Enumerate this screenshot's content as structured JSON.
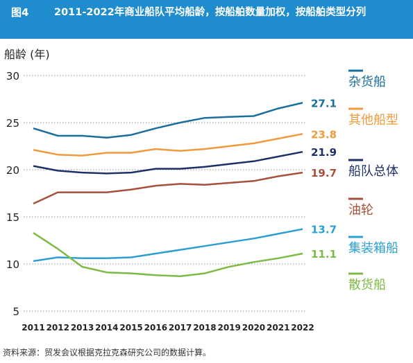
{
  "figure": {
    "number": "图4",
    "title": "2011-2022年商业船队平均船龄，按船舶数量加权，按船舶类型分列"
  },
  "source_note": "资料来源：贸发会议根据克拉克森研究公司的数据计算。",
  "colors": {
    "header": "#1f8ccd",
    "杂货船": "#1a6e9c",
    "其他船型": "#ef9a3b",
    "船队总体": "#1e3166",
    "油轮": "#a6503a",
    "集装箱船": "#2b9fd1",
    "散货船": "#7dba45"
  },
  "chart_data": {
    "type": "line",
    "ylabel": "船龄 (年)",
    "ylim": [
      5,
      30
    ],
    "yticks": [
      5,
      10,
      15,
      20,
      25,
      30
    ],
    "grid": "horizontal dotted",
    "legend": "right",
    "x": [
      "2011",
      "2012",
      "2013",
      "2014",
      "2015",
      "2016",
      "2017",
      "2018",
      "2019",
      "2020",
      "2021",
      "2022"
    ],
    "series": [
      {
        "name": "杂货船",
        "end_label": "27.1",
        "values": [
          24.4,
          23.6,
          23.6,
          23.4,
          23.7,
          24.4,
          25.0,
          25.5,
          25.6,
          25.7,
          26.5,
          27.1
        ]
      },
      {
        "name": "其他船型",
        "end_label": "23.8",
        "values": [
          22.1,
          21.6,
          21.5,
          21.8,
          21.8,
          22.2,
          22.0,
          22.2,
          22.5,
          22.8,
          23.3,
          23.8
        ]
      },
      {
        "name": "船队总体",
        "end_label": "21.9",
        "values": [
          20.4,
          19.9,
          19.7,
          19.6,
          19.7,
          20.1,
          20.1,
          20.3,
          20.6,
          20.9,
          21.4,
          21.9
        ]
      },
      {
        "name": "油轮",
        "end_label": "19.7",
        "values": [
          16.4,
          17.6,
          17.6,
          17.6,
          17.9,
          18.3,
          18.5,
          18.4,
          18.6,
          18.8,
          19.3,
          19.7
        ]
      },
      {
        "name": "集装箱船",
        "end_label": "13.7",
        "values": [
          10.3,
          10.7,
          10.6,
          10.6,
          10.7,
          11.1,
          11.5,
          11.9,
          12.3,
          12.7,
          13.2,
          13.7
        ]
      },
      {
        "name": "散货船",
        "end_label": "11.1",
        "values": [
          13.3,
          11.6,
          9.7,
          9.1,
          9.0,
          8.8,
          8.7,
          9.0,
          9.7,
          10.2,
          10.6,
          11.1
        ]
      }
    ]
  }
}
